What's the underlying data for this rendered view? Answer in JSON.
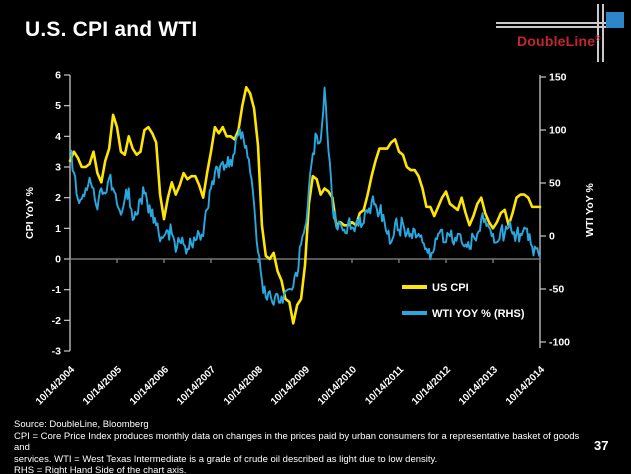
{
  "slide": {
    "title": "U.S. CPI and WTI",
    "page_number": "37",
    "footer_lines": [
      "Source: DoubleLine, Bloomberg",
      "CPI = Core Price Index produces monthly data on changes in the prices paid by urban consumers for a representative basket of goods and",
      "services. WTI = West Texas Intermediate is a grade of crude oil described as light due to low density.",
      "RHS = Right Hand Side of the chart axis."
    ]
  },
  "logo": {
    "text": "DoubleLine",
    "registered_mark": "®",
    "brand_red": "#c4262e",
    "square_blue": "#2e86c8"
  },
  "chart_data": {
    "type": "line",
    "title": "",
    "frequency": "monthly",
    "x_start": "10/14/2004",
    "x_end": "10/14/2014",
    "x_tick_labels": [
      "10/14/2004",
      "10/14/2005",
      "10/14/2006",
      "10/14/2007",
      "10/14/2008",
      "10/14/2009",
      "10/14/2010",
      "10/14/2011",
      "10/14/2012",
      "10/14/2013",
      "10/14/2014"
    ],
    "left_axis": {
      "title": "CPI YoY %",
      "min": -3,
      "max": 6,
      "ticks": [
        6,
        5,
        4,
        3,
        2,
        1,
        0,
        -1,
        -2,
        -3
      ]
    },
    "right_axis": {
      "title": "WTI YoY %",
      "min": -100,
      "max": 150,
      "ticks": [
        150,
        100,
        50,
        0,
        -50,
        -100
      ]
    },
    "grid": "none",
    "colors": {
      "axis_line": "#8c8c8c",
      "tick_label": "#ffffff",
      "background": "#000000"
    },
    "legend": {
      "position": "inside-lower-right"
    },
    "series": [
      {
        "name": "US CPI",
        "axis": "left",
        "color": "#ffe600",
        "values": [
          3.2,
          3.5,
          3.3,
          3.0,
          3.0,
          3.1,
          3.5,
          2.8,
          2.5,
          3.2,
          3.6,
          4.7,
          4.3,
          3.5,
          3.4,
          4.0,
          3.6,
          3.4,
          3.5,
          4.2,
          4.3,
          4.1,
          3.8,
          2.1,
          1.3,
          2.0,
          2.5,
          2.1,
          2.4,
          2.8,
          2.6,
          2.7,
          2.7,
          2.4,
          2.0,
          2.8,
          3.5,
          4.3,
          4.1,
          4.3,
          4.0,
          4.0,
          3.9,
          4.2,
          5.0,
          5.6,
          5.4,
          4.9,
          3.7,
          1.1,
          0.1,
          0.0,
          0.2,
          -0.4,
          -0.7,
          -1.3,
          -1.4,
          -2.1,
          -1.5,
          -1.3,
          -0.2,
          1.8,
          2.7,
          2.6,
          2.1,
          2.3,
          2.2,
          2.0,
          1.1,
          1.2,
          1.1,
          1.1,
          1.2,
          1.1,
          1.5,
          1.6,
          2.1,
          2.7,
          3.2,
          3.6,
          3.6,
          3.6,
          3.8,
          3.9,
          3.5,
          3.4,
          3.0,
          2.9,
          2.9,
          2.7,
          2.3,
          1.7,
          1.7,
          1.4,
          1.7,
          2.0,
          2.2,
          1.8,
          1.7,
          1.6,
          2.0,
          1.5,
          1.1,
          1.4,
          1.8,
          2.0,
          1.5,
          1.2,
          1.0,
          1.2,
          1.5,
          1.6,
          1.1,
          1.5,
          2.0,
          2.1,
          2.1,
          2.0,
          1.7,
          1.7,
          1.7
        ]
      },
      {
        "name": "WTI YOY % (RHS)",
        "axis": "right",
        "color": "#29a8e0",
        "noise_amplitude": 8,
        "values": [
          80,
          60,
          35,
          35,
          45,
          55,
          45,
          25,
          45,
          40,
          55,
          45,
          30,
          20,
          35,
          45,
          15,
          20,
          35,
          40,
          22,
          25,
          10,
          -5,
          0,
          5,
          2,
          -15,
          -5,
          -8,
          -12,
          -8,
          -4,
          2,
          0,
          25,
          45,
          60,
          55,
          70,
          65,
          72,
          78,
          95,
          98,
          85,
          60,
          30,
          -15,
          -42,
          -58,
          -52,
          -65,
          -55,
          -57,
          -52,
          -50,
          -48,
          -38,
          -8,
          8,
          45,
          78,
          95,
          90,
          140,
          80,
          30,
          8,
          12,
          6,
          12,
          8,
          12,
          18,
          12,
          22,
          32,
          30,
          22,
          20,
          2,
          -6,
          12,
          6,
          12,
          2,
          2,
          6,
          2,
          -6,
          -12,
          -22,
          -12,
          2,
          6,
          -6,
          0,
          -8,
          2,
          -6,
          -8,
          -12,
          0,
          2,
          16,
          16,
          8,
          2,
          -6,
          6,
          2,
          8,
          2,
          2,
          2,
          8,
          -4,
          -10,
          -12,
          -20
        ]
      }
    ]
  }
}
